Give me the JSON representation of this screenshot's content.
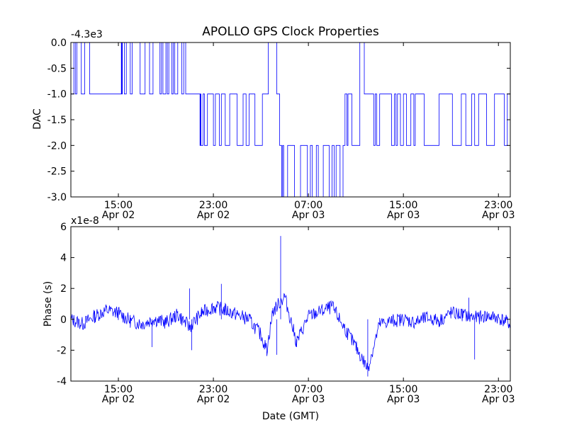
{
  "title": "APOLLO GPS Clock Properties",
  "colors": {
    "trace": "#0000ff",
    "background": "#ffffff",
    "axes": "#000000"
  },
  "chart_data": [
    {
      "type": "line",
      "ylabel": "DAC",
      "xlabel": "",
      "offset_label": "-4.3e3",
      "grid": false,
      "xlim": [
        "Apr 02 11:00",
        "Apr 04 00:00"
      ],
      "ylim": [
        -3.0,
        0.0
      ],
      "yticks": [
        "0.0",
        "-0.5",
        "-1.0",
        "-1.5",
        "-2.0",
        "-2.5",
        "-3.0"
      ],
      "xticks": [
        {
          "time": "15:00",
          "date": "Apr 02"
        },
        {
          "time": "23:00",
          "date": "Apr 02"
        },
        {
          "time": "07:00",
          "date": "Apr 03"
        },
        {
          "time": "15:00",
          "date": "Apr 03"
        },
        {
          "time": "23:00",
          "date": "Apr 03"
        }
      ],
      "series": [
        {
          "points": [
            [
              "Apr 02 11:00",
              -1.0
            ],
            [
              "Apr 02 11:30",
              0.0
            ],
            [
              "Apr 02 12:00",
              -1.0
            ],
            [
              "Apr 02 12:20",
              0.0
            ],
            [
              "Apr 02 12:40",
              -1.0
            ],
            [
              "Apr 02 15:10",
              -1.0
            ],
            [
              "Apr 02 15:20",
              0.0
            ],
            [
              "Apr 02 16:00",
              -1.0
            ],
            [
              "Apr 02 16:20",
              0.0
            ],
            [
              "Apr 02 17:00",
              -1.0
            ],
            [
              "Apr 02 17:20",
              0.0
            ],
            [
              "Apr 02 18:30",
              -1.0
            ],
            [
              "Apr 02 19:00",
              0.0
            ],
            [
              "Apr 02 19:30",
              -1.0
            ],
            [
              "Apr 02 20:00",
              0.0
            ],
            [
              "Apr 02 20:40",
              -1.0
            ],
            [
              "Apr 02 21:50",
              -1.0
            ],
            [
              "Apr 02 22:00",
              -2.0
            ],
            [
              "Apr 02 22:30",
              -1.0
            ],
            [
              "Apr 02 23:00",
              -2.0
            ],
            [
              "Apr 02 23:20",
              -1.0
            ],
            [
              "Apr 03 00:00",
              -2.0
            ],
            [
              "Apr 03 00:30",
              -1.0
            ],
            [
              "Apr 03 01:00",
              -2.0
            ],
            [
              "Apr 03 02:00",
              -1.0
            ],
            [
              "Apr 03 03:00",
              -2.0
            ],
            [
              "Apr 03 03:30",
              -1.0
            ],
            [
              "Apr 03 04:00",
              0.0
            ],
            [
              "Apr 03 04:20",
              -1.0
            ],
            [
              "Apr 03 04:40",
              -2.0
            ],
            [
              "Apr 03 05:00",
              -3.0
            ],
            [
              "Apr 03 05:20",
              -2.0
            ],
            [
              "Apr 03 06:00",
              -3.0
            ],
            [
              "Apr 03 06:40",
              -2.0
            ],
            [
              "Apr 03 07:00",
              -3.0
            ],
            [
              "Apr 03 07:40",
              -2.0
            ],
            [
              "Apr 03 08:00",
              -3.0
            ],
            [
              "Apr 03 09:00",
              -2.0
            ],
            [
              "Apr 03 09:40",
              -3.0
            ],
            [
              "Apr 03 10:00",
              -2.0
            ],
            [
              "Apr 03 10:20",
              -1.0
            ],
            [
              "Apr 03 10:40",
              -2.0
            ],
            [
              "Apr 03 11:20",
              0.0
            ],
            [
              "Apr 03 11:50",
              -1.0
            ],
            [
              "Apr 03 12:30",
              -2.0
            ],
            [
              "Apr 03 13:00",
              -1.0
            ],
            [
              "Apr 03 14:00",
              -2.0
            ],
            [
              "Apr 03 14:30",
              -1.0
            ],
            [
              "Apr 03 15:30",
              -2.0
            ],
            [
              "Apr 03 16:00",
              -1.0
            ],
            [
              "Apr 03 17:00",
              -2.0
            ],
            [
              "Apr 03 18:00",
              -1.0
            ],
            [
              "Apr 03 19:30",
              -2.0
            ],
            [
              "Apr 03 20:00",
              -1.0
            ],
            [
              "Apr 03 21:00",
              -2.0
            ],
            [
              "Apr 03 21:40",
              -1.0
            ],
            [
              "Apr 03 22:20",
              -2.0
            ],
            [
              "Apr 03 23:00",
              -1.0
            ],
            [
              "Apr 03 23:40",
              -2.0
            ],
            [
              "Apr 04 00:00",
              -1.0
            ]
          ]
        }
      ]
    },
    {
      "type": "line",
      "ylabel": "Phase (s)",
      "xlabel": "Date (GMT)",
      "offset_label": "x1e-8",
      "grid": false,
      "xlim": [
        "Apr 02 11:00",
        "Apr 04 00:00"
      ],
      "ylim": [
        -4,
        6
      ],
      "yticks": [
        "6",
        "4",
        "2",
        "0",
        "-2",
        "-4"
      ],
      "xticks": [
        {
          "time": "15:00",
          "date": "Apr 02"
        },
        {
          "time": "23:00",
          "date": "Apr 02"
        },
        {
          "time": "07:00",
          "date": "Apr 03"
        },
        {
          "time": "15:00",
          "date": "Apr 03"
        },
        {
          "time": "23:00",
          "date": "Apr 03"
        }
      ],
      "series": [
        {
          "points": [
            [
              "Apr 02 11:00",
              0.0
            ],
            [
              "Apr 02 12:00",
              -0.3
            ],
            [
              "Apr 02 13:00",
              0.2
            ],
            [
              "Apr 02 14:00",
              0.6
            ],
            [
              "Apr 02 15:00",
              0.4
            ],
            [
              "Apr 02 16:00",
              -0.1
            ],
            [
              "Apr 02 17:00",
              -0.3
            ],
            [
              "Apr 02 18:00",
              0.0
            ],
            [
              "Apr 02 19:00",
              -0.2
            ],
            [
              "Apr 02 20:00",
              0.3
            ],
            [
              "Apr 02 21:00",
              -0.5
            ],
            [
              "Apr 02 22:00",
              0.4
            ],
            [
              "Apr 02 23:00",
              0.8
            ],
            [
              "Apr 03 00:00",
              0.6
            ],
            [
              "Apr 03 01:00",
              0.3
            ],
            [
              "Apr 03 02:00",
              0.0
            ],
            [
              "Apr 03 03:00",
              -1.0
            ],
            [
              "Apr 03 03:30",
              -2.0
            ],
            [
              "Apr 03 04:00",
              0.5
            ],
            [
              "Apr 03 05:00",
              1.5
            ],
            [
              "Apr 03 06:00",
              -1.5
            ],
            [
              "Apr 03 07:00",
              0.2
            ],
            [
              "Apr 03 08:00",
              0.5
            ],
            [
              "Apr 03 09:00",
              0.8
            ],
            [
              "Apr 03 10:00",
              -0.5
            ],
            [
              "Apr 03 11:00",
              -1.8
            ],
            [
              "Apr 03 12:00",
              -3.2
            ],
            [
              "Apr 03 13:00",
              -0.3
            ],
            [
              "Apr 03 14:00",
              -0.1
            ],
            [
              "Apr 03 15:00",
              0.0
            ],
            [
              "Apr 03 16:00",
              -0.2
            ],
            [
              "Apr 03 17:00",
              0.1
            ],
            [
              "Apr 03 18:00",
              -0.1
            ],
            [
              "Apr 03 19:00",
              0.4
            ],
            [
              "Apr 03 20:00",
              0.3
            ],
            [
              "Apr 03 21:00",
              0.1
            ],
            [
              "Apr 03 22:00",
              0.2
            ],
            [
              "Apr 03 23:00",
              0.1
            ],
            [
              "Apr 04 00:00",
              -0.3
            ]
          ],
          "spikes": [
            [
              "Apr 02 21:00",
              2.0
            ],
            [
              "Apr 02 21:10",
              -2.0
            ],
            [
              "Apr 02 23:40",
              2.3
            ],
            [
              "Apr 03 04:40",
              5.4
            ],
            [
              "Apr 03 04:20",
              -2.3
            ],
            [
              "Apr 03 12:00",
              -3.7
            ],
            [
              "Apr 03 21:00",
              -2.6
            ],
            [
              "Apr 03 20:30",
              1.4
            ],
            [
              "Apr 02 17:50",
              -1.8
            ]
          ]
        }
      ]
    }
  ]
}
